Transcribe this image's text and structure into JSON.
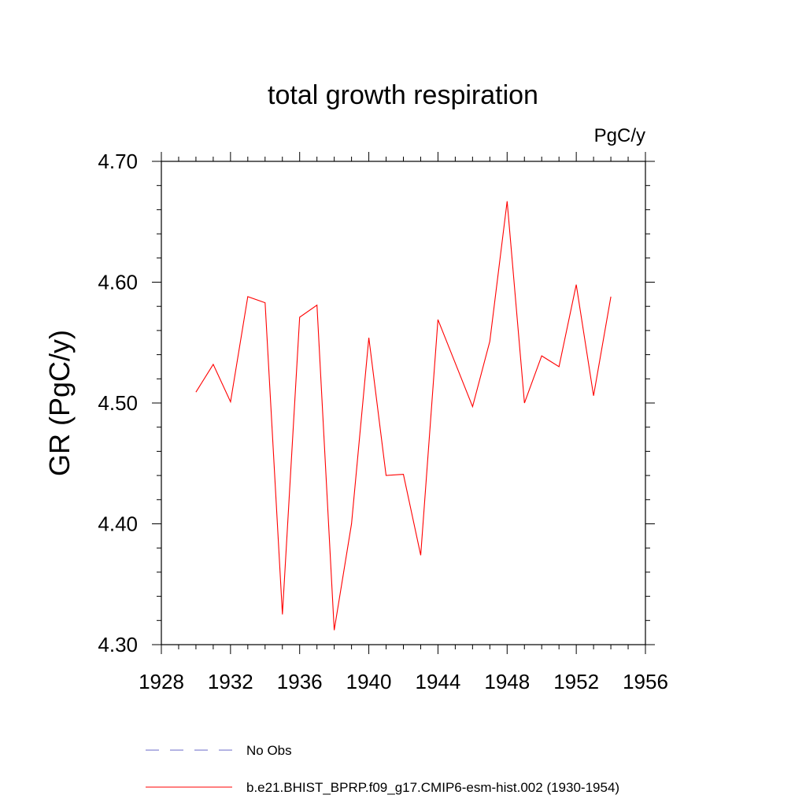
{
  "chart_data": {
    "type": "line",
    "title": "total growth respiration",
    "units_label": "PgC/y",
    "ylabel": "GR  (PgC/y)",
    "xlabel": "",
    "xlim": [
      1928,
      1956
    ],
    "ylim": [
      4.3,
      4.7
    ],
    "x_ticks": [
      1928,
      1932,
      1936,
      1940,
      1944,
      1948,
      1952,
      1956
    ],
    "x_tick_labels": [
      "1928",
      "1932",
      "1936",
      "1940",
      "1944",
      "1948",
      "1952",
      "1956"
    ],
    "y_ticks": [
      4.3,
      4.4,
      4.5,
      4.6,
      4.7
    ],
    "y_tick_labels": [
      "4.30",
      "4.40",
      "4.50",
      "4.60",
      "4.70"
    ],
    "grid": false,
    "legend_position": "bottom",
    "colors": {
      "model": "#ff0000",
      "obs": "#6a6ac8"
    },
    "series": [
      {
        "name": "b.e21.BHIST_BPRP.f09_g17.CMIP6-esm-hist.002 (1930-1954)",
        "color": "#ff0000",
        "x": [
          1930,
          1931,
          1932,
          1933,
          1934,
          1935,
          1936,
          1937,
          1938,
          1939,
          1940,
          1941,
          1942,
          1943,
          1944,
          1945,
          1946,
          1947,
          1948,
          1949,
          1950,
          1951,
          1952,
          1953,
          1954
        ],
        "y": [
          4.509,
          4.532,
          4.501,
          4.588,
          4.583,
          4.325,
          4.571,
          4.581,
          4.312,
          4.4,
          4.554,
          4.44,
          4.441,
          4.374,
          4.569,
          4.533,
          4.497,
          4.551,
          4.667,
          4.5,
          4.539,
          4.53,
          4.598,
          4.506,
          4.588
        ]
      }
    ],
    "legend": [
      {
        "label": "No Obs",
        "style": "dashed",
        "color": "#6a6ac8"
      },
      {
        "label": "b.e21.BHIST_BPRP.f09_g17.CMIP6-esm-hist.002 (1930-1954)",
        "style": "solid",
        "color": "#ff0000"
      }
    ]
  }
}
